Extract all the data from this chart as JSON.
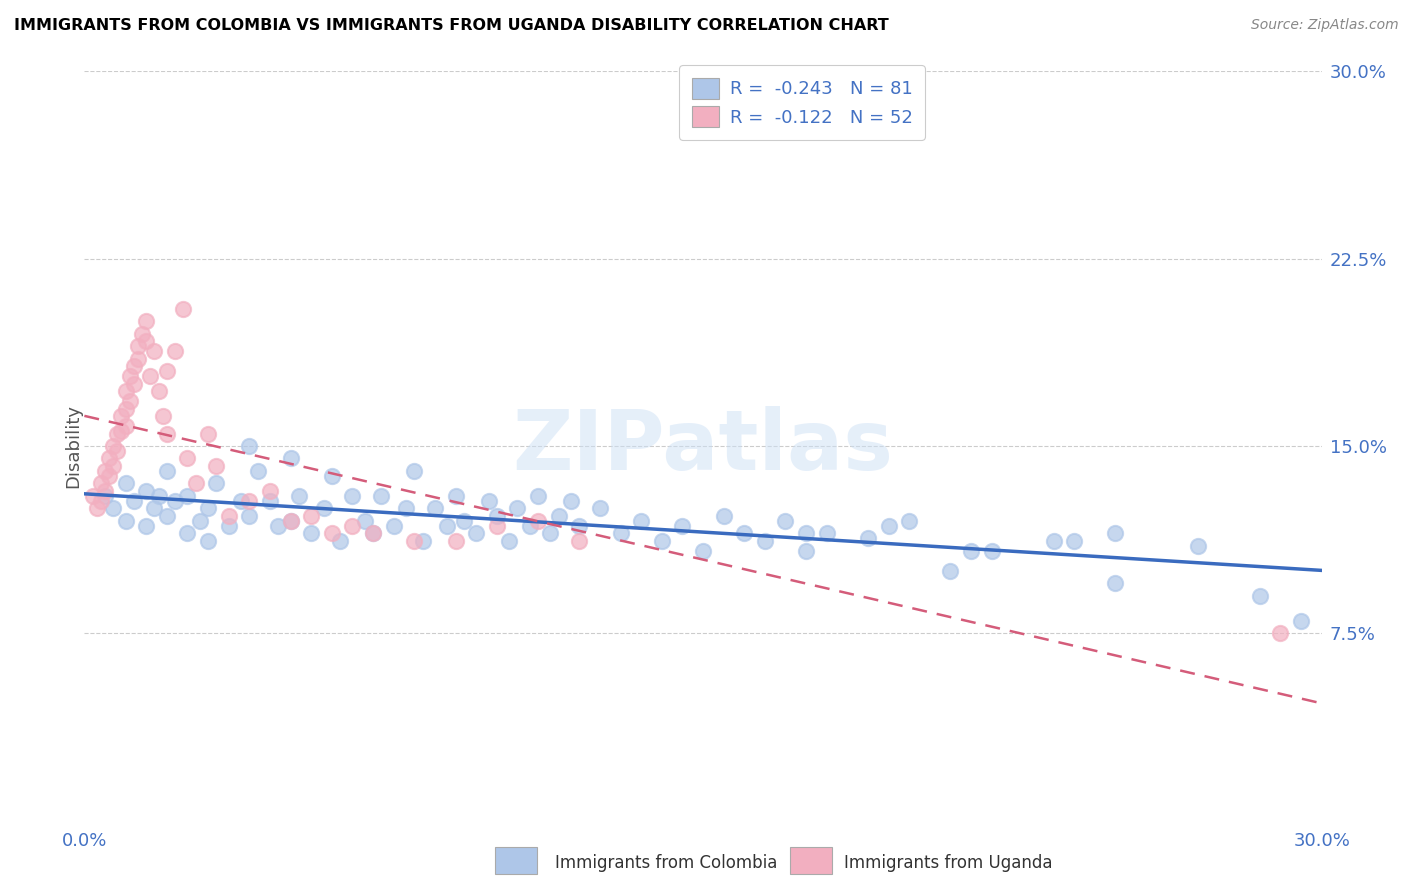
{
  "title": "IMMIGRANTS FROM COLOMBIA VS IMMIGRANTS FROM UGANDA DISABILITY CORRELATION CHART",
  "source": "Source: ZipAtlas.com",
  "ylabel": "Disability",
  "xlim": [
    0.0,
    0.3
  ],
  "ylim": [
    0.0,
    0.3
  ],
  "y_ticks_right": [
    0.075,
    0.15,
    0.225,
    0.3
  ],
  "y_tick_labels_right": [
    "7.5%",
    "15.0%",
    "22.5%",
    "30.0%"
  ],
  "colombia_color": "#aec6e8",
  "uganda_color": "#f2afc0",
  "colombia_R": -0.243,
  "colombia_N": 81,
  "uganda_R": -0.122,
  "uganda_N": 52,
  "trend_colombia_color": "#3a6bbf",
  "trend_uganda_color": "#d45c7a",
  "watermark": "ZIPatlas",
  "colombia_scatter_x": [
    0.005,
    0.007,
    0.01,
    0.01,
    0.012,
    0.015,
    0.015,
    0.017,
    0.018,
    0.02,
    0.02,
    0.022,
    0.025,
    0.025,
    0.028,
    0.03,
    0.03,
    0.032,
    0.035,
    0.038,
    0.04,
    0.04,
    0.042,
    0.045,
    0.047,
    0.05,
    0.05,
    0.052,
    0.055,
    0.058,
    0.06,
    0.062,
    0.065,
    0.068,
    0.07,
    0.072,
    0.075,
    0.078,
    0.08,
    0.082,
    0.085,
    0.088,
    0.09,
    0.092,
    0.095,
    0.098,
    0.1,
    0.103,
    0.105,
    0.108,
    0.11,
    0.113,
    0.115,
    0.118,
    0.12,
    0.125,
    0.13,
    0.135,
    0.14,
    0.145,
    0.15,
    0.155,
    0.16,
    0.165,
    0.17,
    0.175,
    0.18,
    0.19,
    0.2,
    0.21,
    0.22,
    0.24,
    0.25,
    0.27,
    0.285,
    0.295,
    0.25,
    0.215,
    0.235,
    0.195,
    0.175
  ],
  "colombia_scatter_y": [
    0.13,
    0.125,
    0.135,
    0.12,
    0.128,
    0.132,
    0.118,
    0.125,
    0.13,
    0.122,
    0.14,
    0.128,
    0.115,
    0.13,
    0.12,
    0.125,
    0.112,
    0.135,
    0.118,
    0.128,
    0.15,
    0.122,
    0.14,
    0.128,
    0.118,
    0.145,
    0.12,
    0.13,
    0.115,
    0.125,
    0.138,
    0.112,
    0.13,
    0.12,
    0.115,
    0.13,
    0.118,
    0.125,
    0.14,
    0.112,
    0.125,
    0.118,
    0.13,
    0.12,
    0.115,
    0.128,
    0.122,
    0.112,
    0.125,
    0.118,
    0.13,
    0.115,
    0.122,
    0.128,
    0.118,
    0.125,
    0.115,
    0.12,
    0.112,
    0.118,
    0.108,
    0.122,
    0.115,
    0.112,
    0.12,
    0.108,
    0.115,
    0.113,
    0.12,
    0.1,
    0.108,
    0.112,
    0.095,
    0.11,
    0.09,
    0.08,
    0.115,
    0.108,
    0.112,
    0.118,
    0.115
  ],
  "uganda_scatter_x": [
    0.002,
    0.003,
    0.004,
    0.004,
    0.005,
    0.005,
    0.006,
    0.006,
    0.007,
    0.007,
    0.008,
    0.008,
    0.009,
    0.009,
    0.01,
    0.01,
    0.01,
    0.011,
    0.011,
    0.012,
    0.012,
    0.013,
    0.013,
    0.014,
    0.015,
    0.015,
    0.016,
    0.017,
    0.018,
    0.019,
    0.02,
    0.02,
    0.022,
    0.024,
    0.025,
    0.027,
    0.03,
    0.032,
    0.035,
    0.04,
    0.045,
    0.05,
    0.055,
    0.06,
    0.065,
    0.07,
    0.08,
    0.09,
    0.1,
    0.11,
    0.12,
    0.29
  ],
  "uganda_scatter_y": [
    0.13,
    0.125,
    0.135,
    0.128,
    0.14,
    0.132,
    0.145,
    0.138,
    0.15,
    0.142,
    0.155,
    0.148,
    0.162,
    0.156,
    0.165,
    0.158,
    0.172,
    0.168,
    0.178,
    0.182,
    0.175,
    0.19,
    0.185,
    0.195,
    0.2,
    0.192,
    0.178,
    0.188,
    0.172,
    0.162,
    0.18,
    0.155,
    0.188,
    0.205,
    0.145,
    0.135,
    0.155,
    0.142,
    0.122,
    0.128,
    0.132,
    0.12,
    0.122,
    0.115,
    0.118,
    0.115,
    0.112,
    0.112,
    0.118,
    0.12,
    0.112,
    0.075
  ]
}
